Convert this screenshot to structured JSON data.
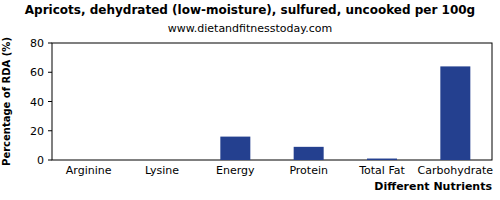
{
  "chart_data": {
    "type": "bar",
    "title": "Apricots, dehydrated (low-moisture), sulfured, uncooked per 100g",
    "subtitle": "www.dietandfitnesstoday.com",
    "y_label": "Percentage of RDA (%)",
    "x_label": "Different Nutrients",
    "categories": [
      "Arginine",
      "Lysine",
      "Energy",
      "Protein",
      "Total Fat",
      "Carbohydrate"
    ],
    "values": [
      0,
      0,
      16,
      9,
      1,
      64
    ],
    "color": "#24408f",
    "ylim": [
      0,
      80
    ],
    "yticks": [
      0,
      20,
      40,
      60,
      80
    ],
    "grid": false
  }
}
